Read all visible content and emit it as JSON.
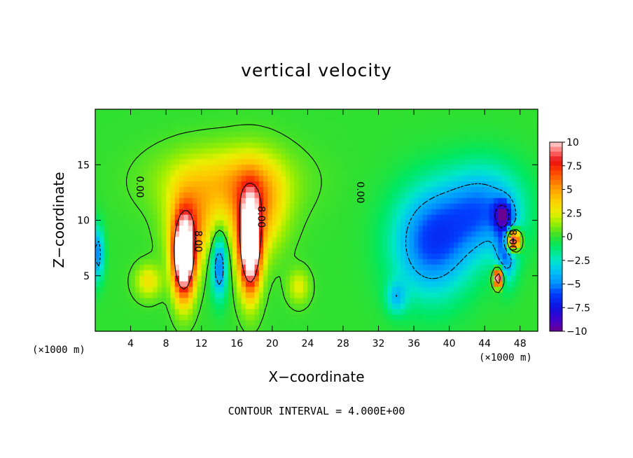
{
  "chart_data": {
    "type": "heatmap",
    "title": "vertical velocity",
    "xlabel": "X−coordinate",
    "ylabel": "Z−coordinate",
    "x_unit_left": "(×1000 m)",
    "x_unit_right": "(×1000 m)",
    "annotation": "CONTOUR INTERVAL = 4.000E+00",
    "xlim": [
      0,
      50
    ],
    "ylim": [
      0,
      20
    ],
    "x_ticks": [
      "4",
      "8",
      "12",
      "16",
      "20",
      "24",
      "28",
      "32",
      "36",
      "40",
      "44",
      "48"
    ],
    "y_ticks": [
      "5",
      "10",
      "15"
    ],
    "x_tick_values": [
      4,
      8,
      12,
      16,
      20,
      24,
      28,
      32,
      36,
      40,
      44,
      48
    ],
    "y_tick_values": [
      5,
      10,
      15
    ],
    "colorbar": {
      "ticks": [
        "10",
        "7.5",
        "5",
        "2.5",
        "0",
        "−2.5",
        "−5",
        "−7.5",
        "−10"
      ],
      "tick_values": [
        10,
        7.5,
        5,
        2.5,
        0,
        -2.5,
        -5,
        -7.5,
        -10
      ],
      "range": [
        -10,
        10
      ]
    },
    "contour_labels": [
      {
        "text": "0.00",
        "x": 5,
        "z": 13
      },
      {
        "text": "8.00",
        "x": 11.6,
        "z": 8.1
      },
      {
        "text": "8.00",
        "x": 18.7,
        "z": 10.3
      },
      {
        "text": "0.00",
        "x": 29.9,
        "z": 12.5
      },
      {
        "text": "8.00",
        "x": 47.1,
        "z": 8.2
      }
    ],
    "features": [
      {
        "x": 10,
        "z": 6.5,
        "sx": 1.2,
        "sz": 3.5,
        "a": 14
      },
      {
        "x": 10.8,
        "z": 9.5,
        "sx": 2.6,
        "sz": 3.5,
        "a": 5
      },
      {
        "x": 17.5,
        "z": 7.5,
        "sx": 1.2,
        "sz": 4.0,
        "a": 14
      },
      {
        "x": 18,
        "z": 11,
        "sx": 3.2,
        "sz": 4.0,
        "a": 5
      },
      {
        "x": 14.5,
        "z": 13.5,
        "sx": 7.0,
        "sz": 3.0,
        "a": 3.5
      },
      {
        "x": 14,
        "z": 6,
        "sx": 0.9,
        "sz": 3.0,
        "a": -6
      },
      {
        "x": 6,
        "z": 4.5,
        "sx": 1.5,
        "sz": 1.5,
        "a": 3
      },
      {
        "x": 23,
        "z": 4,
        "sx": 1.2,
        "sz": 1.5,
        "a": 2.5
      },
      {
        "x": 0.3,
        "z": 7,
        "sx": 0.7,
        "sz": 2.5,
        "a": -5
      },
      {
        "x": 38,
        "z": 8,
        "sx": 4.5,
        "sz": 5.0,
        "a": -6
      },
      {
        "x": 44,
        "z": 11,
        "sx": 4.5,
        "sz": 4.0,
        "a": -5
      },
      {
        "x": 46,
        "z": 10.5,
        "sx": 1.0,
        "sz": 1.2,
        "a": -5
      },
      {
        "x": 46.5,
        "z": 7.5,
        "sx": 1.2,
        "sz": 3.0,
        "a": -5
      },
      {
        "x": 47.2,
        "z": 8.2,
        "sx": 0.8,
        "sz": 1.0,
        "a": 14
      },
      {
        "x": 45.5,
        "z": 4.8,
        "sx": 0.5,
        "sz": 0.8,
        "a": 14
      },
      {
        "x": 34,
        "z": 3,
        "sx": 1.2,
        "sz": 1.5,
        "a": -3
      }
    ]
  }
}
